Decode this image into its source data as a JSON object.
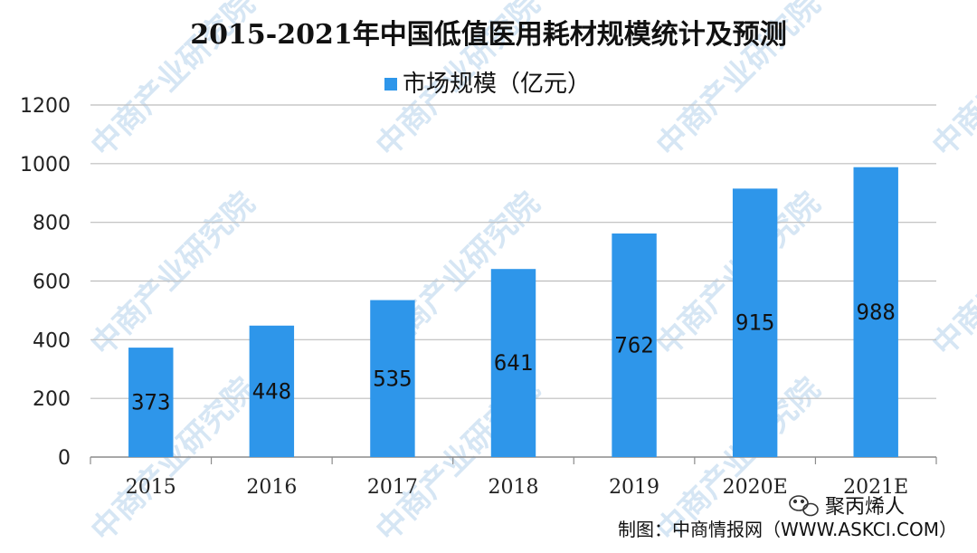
{
  "chart_data": {
    "type": "bar",
    "title": "2015-2021年中国低值医用耗材规模统计及预测",
    "categories": [
      "2015",
      "2016",
      "2017",
      "2018",
      "2019",
      "2020E",
      "2021E"
    ],
    "series": [
      {
        "name": "市场规模（亿元）",
        "values": [
          373,
          448,
          535,
          641,
          762,
          915,
          988
        ],
        "color": "#2e96ea"
      }
    ],
    "ylim": [
      0,
      1200
    ],
    "yticks": [
      "0",
      "200",
      "400",
      "600",
      "800",
      "1000",
      "1200"
    ],
    "grid": true,
    "legend_position": "top-center"
  },
  "source": "制图：中商情报网（WWW.ASKCI.COM）",
  "wechat_account": "聚丙烯人",
  "watermark": "中商产业研究院",
  "colors": {
    "bar": "#2e96ea",
    "grid": "#bdbdbd",
    "axis": "#8c8c8c"
  }
}
